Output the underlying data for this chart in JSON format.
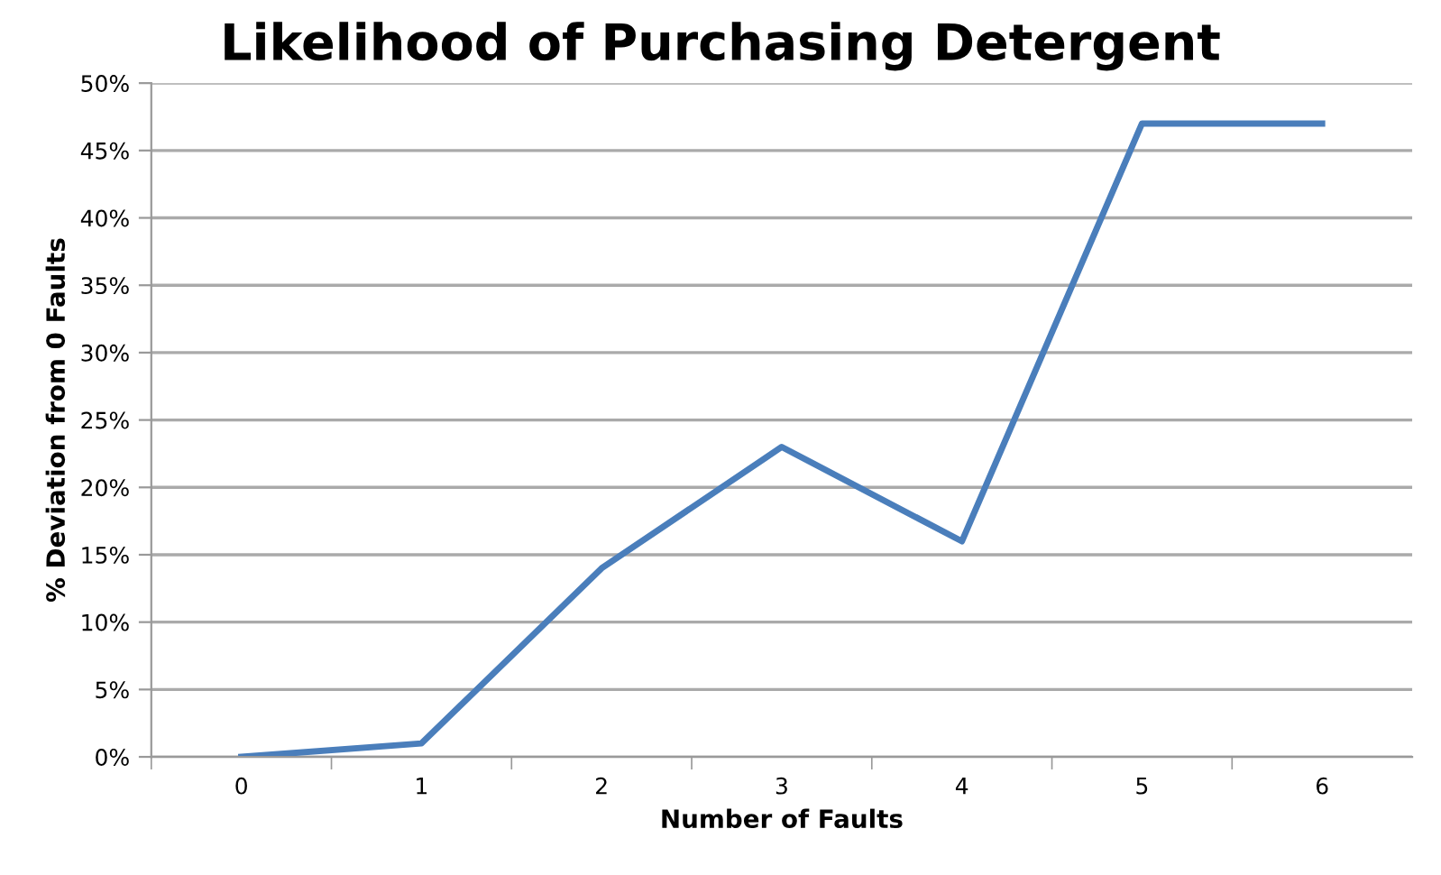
{
  "chart_data": {
    "type": "line",
    "title": "Likelihood of Purchasing Detergent",
    "xlabel": "Number of Faults",
    "ylabel": "% Deviation from 0 Faults",
    "categories": [
      "0",
      "1",
      "2",
      "3",
      "4",
      "5",
      "6"
    ],
    "series": [
      {
        "color": "#4a7ebb",
        "values": [
          0,
          1,
          14,
          23,
          16,
          47,
          47
        ]
      }
    ],
    "ylim": [
      0,
      50
    ],
    "yticks": [
      {
        "value": 0,
        "label": "0%"
      },
      {
        "value": 5,
        "label": "5%"
      },
      {
        "value": 10,
        "label": "10%"
      },
      {
        "value": 15,
        "label": "15%"
      },
      {
        "value": 20,
        "label": "20%"
      },
      {
        "value": 25,
        "label": "25%"
      },
      {
        "value": 30,
        "label": "30%"
      },
      {
        "value": 35,
        "label": "35%"
      },
      {
        "value": 40,
        "label": "40%"
      },
      {
        "value": 45,
        "label": "45%"
      },
      {
        "value": 50,
        "label": "50%"
      }
    ],
    "grid": "y",
    "legend": false,
    "marker": "none",
    "line_style": "solid"
  }
}
